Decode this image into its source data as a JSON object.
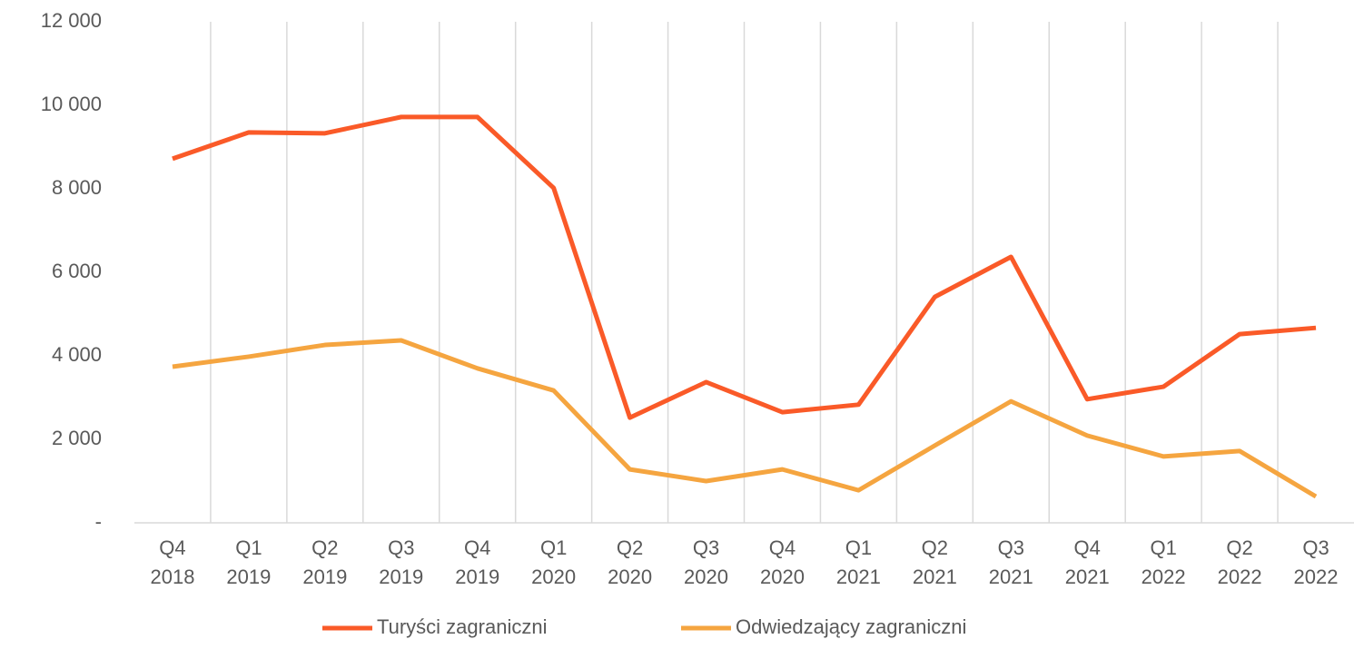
{
  "chart_data": {
    "type": "line",
    "categories": [
      "Q4 2018",
      "Q1 2019",
      "Q2 2019",
      "Q3 2019",
      "Q4 2019",
      "Q1 2020",
      "Q2 2020",
      "Q3 2020",
      "Q4 2020",
      "Q1 2021",
      "Q2 2021",
      "Q3 2021",
      "Q4 2021",
      "Q1 2022",
      "Q2 2022",
      "Q3 2022"
    ],
    "series": [
      {
        "name": "Turyści zagraniczni",
        "color": "#fa5a28",
        "values": [
          8720,
          9350,
          9330,
          9720,
          9720,
          8020,
          2520,
          3370,
          2650,
          2830,
          5410,
          6370,
          2960,
          3260,
          4520,
          4670
        ]
      },
      {
        "name": "Odwiedzający zagraniczni",
        "color": "#f5a540",
        "values": [
          3740,
          3980,
          4260,
          4370,
          3700,
          3170,
          1280,
          1000,
          1280,
          780,
          1850,
          2910,
          2090,
          1590,
          1720,
          630
        ]
      }
    ],
    "ylim": [
      0,
      12000
    ],
    "yticks": [
      {
        "value": 0,
        "label": "-"
      },
      {
        "value": 2000,
        "label": "2 000"
      },
      {
        "value": 4000,
        "label": "4 000"
      },
      {
        "value": 6000,
        "label": "6 000"
      },
      {
        "value": 8000,
        "label": "8 000"
      },
      {
        "value": 10000,
        "label": "10 000"
      },
      {
        "value": 12000,
        "label": "12 000"
      }
    ],
    "legend": "bottom"
  }
}
